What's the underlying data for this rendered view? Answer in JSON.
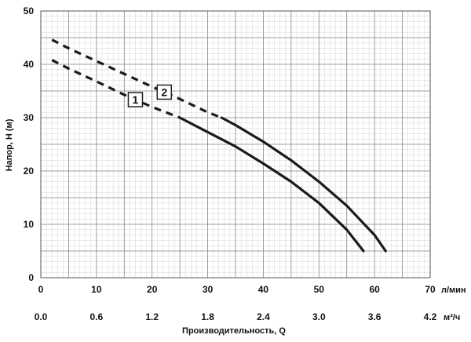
{
  "chart_data": {
    "type": "line",
    "ylabel": "Напор, Н (м)",
    "xlabel": "Производительность, Q",
    "x_unit_primary": "л/мин",
    "x_unit_secondary": "м³/ч",
    "xlim": [
      0,
      70
    ],
    "ylim": [
      0,
      50
    ],
    "x_ticks": [
      0,
      10,
      20,
      30,
      40,
      50,
      60,
      70
    ],
    "x_ticks_secondary": [
      "0.0",
      "0.6",
      "1.2",
      "1.8",
      "2.4",
      "3.0",
      "3.6",
      "4.2"
    ],
    "y_ticks": [
      0,
      10,
      20,
      30,
      40,
      50
    ],
    "grid": true,
    "series": [
      {
        "name": "1",
        "color": "#1a1a1a",
        "dashed_x": [
          2,
          25
        ],
        "x": [
          2,
          5,
          10,
          15,
          20,
          25,
          30,
          35,
          40,
          45,
          50,
          55,
          58
        ],
        "y": [
          40.8,
          39.2,
          36.8,
          34.3,
          32.0,
          30.0,
          27.3,
          24.6,
          21.4,
          18.0,
          14.0,
          9.0,
          5.0
        ]
      },
      {
        "name": "2",
        "color": "#1a1a1a",
        "dashed_x": [
          2,
          32.5
        ],
        "x": [
          2,
          5,
          10,
          15,
          20,
          25,
          30,
          32.5,
          35,
          40,
          45,
          50,
          55,
          60,
          62
        ],
        "y": [
          44.6,
          43.0,
          40.6,
          38.2,
          35.8,
          33.5,
          31.0,
          30.0,
          28.6,
          25.5,
          22.0,
          18.0,
          13.5,
          8.0,
          5.0
        ]
      }
    ]
  }
}
